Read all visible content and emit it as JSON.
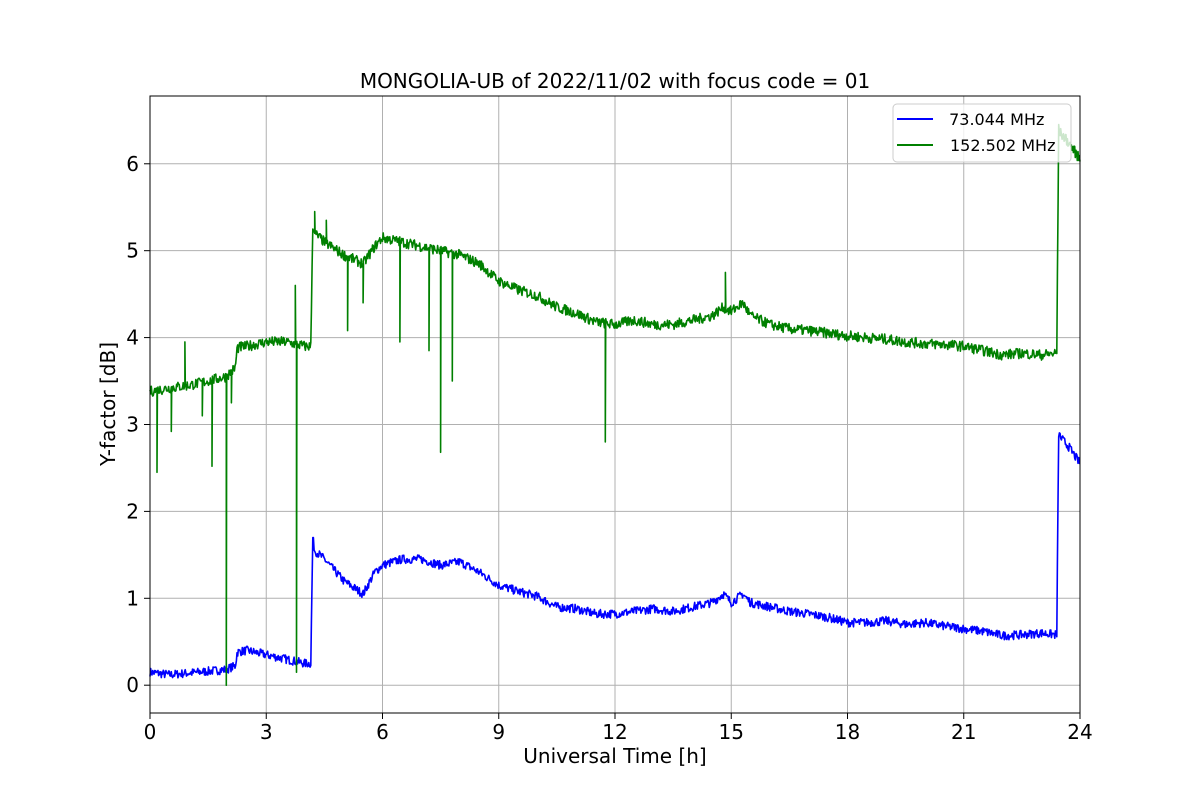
{
  "chart_data": {
    "type": "line",
    "title": "MONGOLIA-UB of 2022/11/02 with focus code = 01",
    "xlabel": "Universal Time [h]",
    "ylabel": "Y-factor [dB]",
    "xlim": [
      0,
      24
    ],
    "ylim": [
      -0.32,
      6.78
    ],
    "xticks": [
      0,
      3,
      6,
      9,
      12,
      15,
      18,
      21,
      24
    ],
    "yticks": [
      0,
      1,
      2,
      3,
      4,
      5,
      6
    ],
    "xtick_labels": [
      "0",
      "3",
      "6",
      "9",
      "12",
      "15",
      "18",
      "21",
      "24"
    ],
    "ytick_labels": [
      "0",
      "1",
      "2",
      "3",
      "4",
      "5",
      "6"
    ],
    "grid": true,
    "legend": "top-right",
    "series": [
      {
        "name": " 73.044 MHz",
        "color": "#0000ff",
        "noise": 0.05,
        "x": [
          0,
          0.5,
          1.0,
          1.5,
          1.95,
          2.2,
          2.25,
          2.5,
          3.0,
          3.5,
          4.0,
          4.15,
          4.2,
          4.25,
          4.5,
          5.0,
          5.5,
          5.8,
          6.0,
          6.5,
          7.0,
          7.5,
          8.0,
          8.5,
          9.0,
          9.5,
          10.0,
          10.5,
          11.0,
          11.5,
          12.0,
          12.5,
          13.0,
          13.5,
          14.0,
          14.5,
          14.8,
          15.0,
          15.3,
          15.5,
          16.0,
          16.5,
          17.0,
          17.5,
          18.0,
          18.5,
          19.0,
          19.5,
          20.0,
          20.5,
          21.0,
          21.5,
          22.0,
          22.5,
          23.0,
          23.4,
          23.45,
          23.5,
          23.7,
          24.0
        ],
        "y": [
          0.15,
          0.12,
          0.14,
          0.16,
          0.18,
          0.22,
          0.38,
          0.4,
          0.35,
          0.3,
          0.25,
          0.25,
          1.7,
          1.55,
          1.45,
          1.2,
          1.05,
          1.3,
          1.38,
          1.45,
          1.45,
          1.38,
          1.42,
          1.3,
          1.15,
          1.08,
          1.02,
          0.9,
          0.88,
          0.82,
          0.82,
          0.85,
          0.88,
          0.85,
          0.9,
          0.95,
          1.05,
          0.95,
          1.05,
          0.95,
          0.9,
          0.85,
          0.82,
          0.78,
          0.72,
          0.72,
          0.74,
          0.7,
          0.72,
          0.68,
          0.65,
          0.62,
          0.57,
          0.58,
          0.6,
          0.58,
          2.9,
          2.85,
          2.75,
          2.55
        ],
        "spikes": []
      },
      {
        "name": "152.502 MHz",
        "color": "#008000",
        "noise": 0.06,
        "x": [
          0,
          0.5,
          1.0,
          1.5,
          1.95,
          2.2,
          2.25,
          2.5,
          3.0,
          3.5,
          4.0,
          4.15,
          4.2,
          4.25,
          4.5,
          5.0,
          5.5,
          5.8,
          6.0,
          6.5,
          7.0,
          7.5,
          8.0,
          8.5,
          9.0,
          9.5,
          10.0,
          10.5,
          11.0,
          11.5,
          12.0,
          12.5,
          13.0,
          13.5,
          14.0,
          14.5,
          14.8,
          15.0,
          15.3,
          15.5,
          16.0,
          16.5,
          17.0,
          17.5,
          18.0,
          18.5,
          19.0,
          19.5,
          20.0,
          20.5,
          21.0,
          21.5,
          22.0,
          22.5,
          23.0,
          23.4,
          23.45,
          23.5,
          23.7,
          24.0
        ],
        "y": [
          3.38,
          3.42,
          3.45,
          3.5,
          3.55,
          3.65,
          3.88,
          3.9,
          3.95,
          3.95,
          3.9,
          3.9,
          5.3,
          5.2,
          5.1,
          4.95,
          4.85,
          5.05,
          5.15,
          5.1,
          5.05,
          5.0,
          4.95,
          4.85,
          4.65,
          4.55,
          4.48,
          4.35,
          4.28,
          4.18,
          4.15,
          4.2,
          4.15,
          4.15,
          4.2,
          4.25,
          4.35,
          4.3,
          4.4,
          4.25,
          4.15,
          4.1,
          4.08,
          4.05,
          4.02,
          4.0,
          3.98,
          3.95,
          3.93,
          3.92,
          3.9,
          3.85,
          3.8,
          3.82,
          3.8,
          3.82,
          6.4,
          6.35,
          6.25,
          6.05
        ],
        "spikes": [
          [
            0.18,
            2.45
          ],
          [
            0.55,
            2.92
          ],
          [
            0.9,
            3.95
          ],
          [
            1.35,
            3.1
          ],
          [
            1.6,
            2.52
          ],
          [
            1.97,
            0.0
          ],
          [
            2.1,
            3.25
          ],
          [
            2.35,
            3.95
          ],
          [
            3.75,
            4.6
          ],
          [
            3.78,
            0.15
          ],
          [
            4.25,
            5.45
          ],
          [
            4.55,
            5.35
          ],
          [
            5.1,
            4.08
          ],
          [
            5.5,
            4.4
          ],
          [
            6.45,
            3.95
          ],
          [
            7.2,
            3.85
          ],
          [
            7.5,
            2.68
          ],
          [
            7.8,
            3.5
          ],
          [
            11.75,
            2.8
          ],
          [
            14.85,
            4.75
          ]
        ]
      }
    ]
  }
}
